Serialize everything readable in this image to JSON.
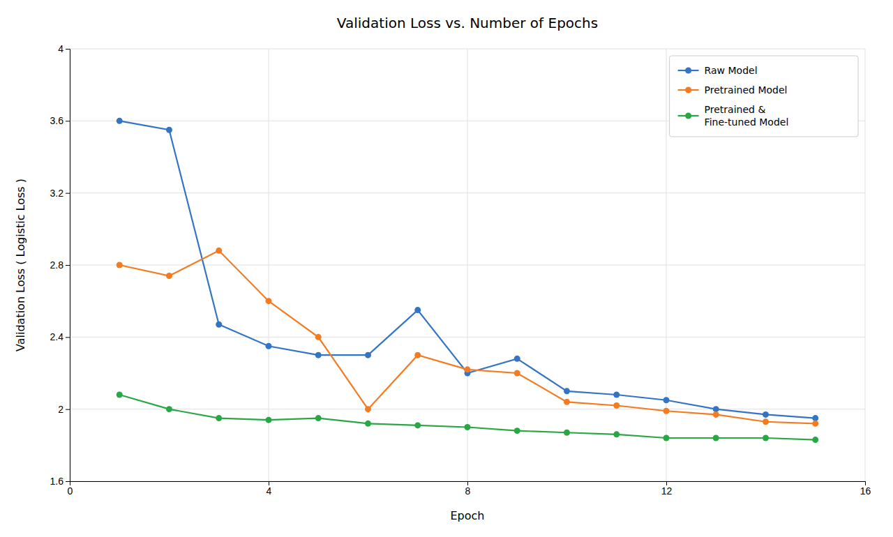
{
  "chart_data": {
    "type": "line",
    "title": "Validation Loss vs. Number of Epochs",
    "xlabel": "Epoch",
    "ylabel": "Validation Loss ( Logistic Loss )",
    "x": [
      1,
      2,
      3,
      4,
      5,
      6,
      7,
      8,
      9,
      10,
      11,
      12,
      13,
      14,
      15
    ],
    "series": [
      {
        "name": "Raw Model",
        "color": "#3474C4",
        "marker": "circle",
        "values": [
          3.6,
          3.55,
          2.47,
          2.35,
          2.3,
          2.3,
          2.55,
          2.2,
          2.28,
          2.1,
          2.08,
          2.05,
          2.0,
          1.97,
          1.95
        ]
      },
      {
        "name": "Pretrained Model",
        "color": "#F47B20",
        "marker": "circle",
        "values": [
          2.8,
          2.74,
          2.88,
          2.6,
          2.4,
          2.0,
          2.3,
          2.22,
          2.2,
          2.04,
          2.02,
          1.99,
          1.97,
          1.93,
          1.92
        ]
      },
      {
        "name": "Pretrained &\nFine-tuned Model",
        "color": "#29A744",
        "marker": "circle",
        "values": [
          2.08,
          2.0,
          1.95,
          1.94,
          1.95,
          1.92,
          1.91,
          1.9,
          1.88,
          1.87,
          1.86,
          1.84,
          1.84,
          1.84,
          1.83
        ]
      }
    ],
    "xlim": [
      0,
      16
    ],
    "ylim": [
      1.6,
      4
    ],
    "xticks": [
      0,
      4,
      8,
      12,
      16
    ],
    "yticks": [
      1.6,
      2,
      2.4,
      2.8,
      3.2,
      3.6,
      4
    ],
    "grid": true,
    "legend": "top-right"
  }
}
